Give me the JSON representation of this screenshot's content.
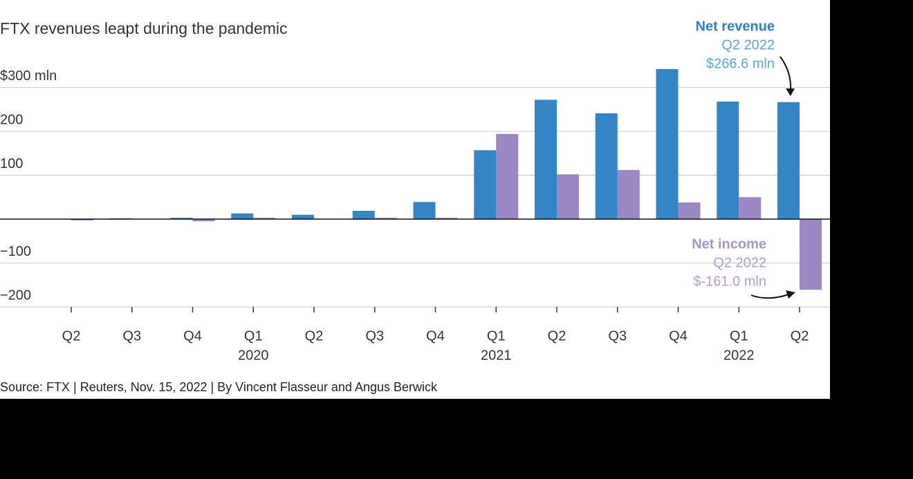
{
  "chart_data": {
    "type": "bar",
    "subtitle": "FTX revenues leapt during the pandemic",
    "source": "Source: FTX | Reuters, Nov. 15, 2022 | By Vincent Flasseur and Angus Berwick",
    "categories": [
      "Q2",
      "Q3",
      "Q4",
      "Q1",
      "Q2",
      "Q3",
      "Q4",
      "Q1",
      "Q2",
      "Q3",
      "Q4",
      "Q1",
      "Q2"
    ],
    "year_labels": [
      null,
      null,
      null,
      "2020",
      null,
      null,
      null,
      "2021",
      null,
      null,
      null,
      "2022",
      null
    ],
    "series": [
      {
        "name": "Net revenue",
        "color": "#3385c6",
        "values": [
          0.5,
          2,
          3,
          13,
          10,
          19,
          39,
          157,
          272,
          241,
          342,
          268,
          266.6
        ],
        "value_labels": [
          null,
          null,
          null,
          null,
          null,
          null,
          null,
          null,
          null,
          null,
          null,
          null,
          "$266.6 mln"
        ],
        "annotation": "Q2 2022"
      },
      {
        "name": "Net income",
        "color": "#9b87c4",
        "values": [
          -3,
          0,
          -5,
          3,
          1,
          3,
          3,
          194,
          102,
          112,
          38,
          50,
          -161.0
        ],
        "value_labels": [
          null,
          null,
          null,
          null,
          null,
          null,
          null,
          null,
          null,
          null,
          null,
          null,
          "$-161.0 mln"
        ],
        "annotation": "Q2 2022"
      }
    ],
    "ylim": [
      -200,
      345
    ],
    "yticks": [
      {
        "value": -200,
        "label": "−200"
      },
      {
        "value": -100,
        "label": "−100"
      },
      100,
      200,
      {
        "value": 300,
        "label": "$300 mln"
      }
    ],
    "grid": true
  }
}
